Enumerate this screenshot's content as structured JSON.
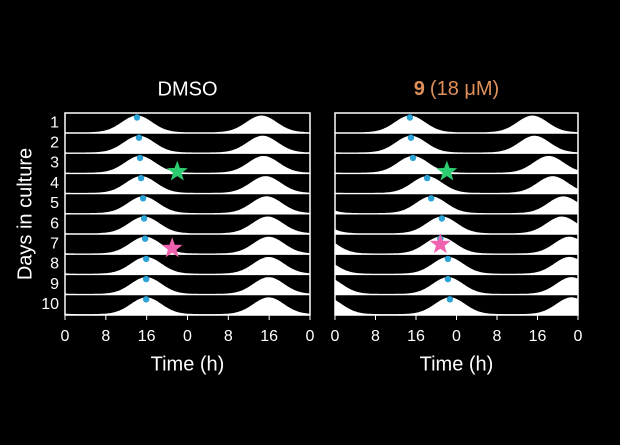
{
  "chart_data": [
    {
      "type": "actogram",
      "title": "DMSO",
      "title_color": "#ffffff",
      "ylabel": "Days in culture",
      "xlabel": "Time (h)",
      "categories": [
        "1",
        "2",
        "3",
        "4",
        "5",
        "6",
        "7",
        "8",
        "9",
        "10"
      ],
      "values": [
        14.1,
        14.5,
        14.7,
        14.9,
        15.3,
        15.5,
        15.7,
        15.9,
        15.9,
        15.9
      ],
      "color": "#2aa3d6",
      "xlim": [
        0,
        48
      ],
      "xticks": [
        0,
        8,
        16,
        {
          "value": 24,
          "label": "0"
        },
        {
          "value": 32,
          "label": "8"
        },
        {
          "value": 40,
          "label": "16"
        },
        {
          "value": 48,
          "label": "0"
        }
      ],
      "markers": [
        {
          "day": 3.4,
          "time": 22.0,
          "color": "#2ecc71"
        },
        {
          "day": 7.2,
          "time": 21.0,
          "color": "#f062b0"
        }
      ]
    },
    {
      "type": "actogram",
      "title": "9",
      "subtitle": "(18 μM)",
      "title_color": "#e0915a",
      "xlabel": "Time (h)",
      "categories": [
        "1",
        "2",
        "3",
        "4",
        "5",
        "6",
        "7",
        "8",
        "9",
        "10"
      ],
      "values": [
        14.8,
        15.0,
        15.4,
        18.2,
        19.0,
        21.1,
        20.8,
        22.3,
        22.3,
        22.7
      ],
      "color": "#2aa3d6",
      "xlim": [
        0,
        48
      ],
      "xticks": [
        0,
        8,
        16,
        {
          "value": 24,
          "label": "0"
        },
        {
          "value": 32,
          "label": "8"
        },
        {
          "value": 40,
          "label": "16"
        },
        {
          "value": 48,
          "label": "0"
        }
      ],
      "markers": [
        {
          "day": 3.4,
          "time": 22.1,
          "color": "#2ecc71"
        },
        {
          "day": 7.0,
          "time": 20.8,
          "color": "#f062b0"
        }
      ]
    }
  ]
}
